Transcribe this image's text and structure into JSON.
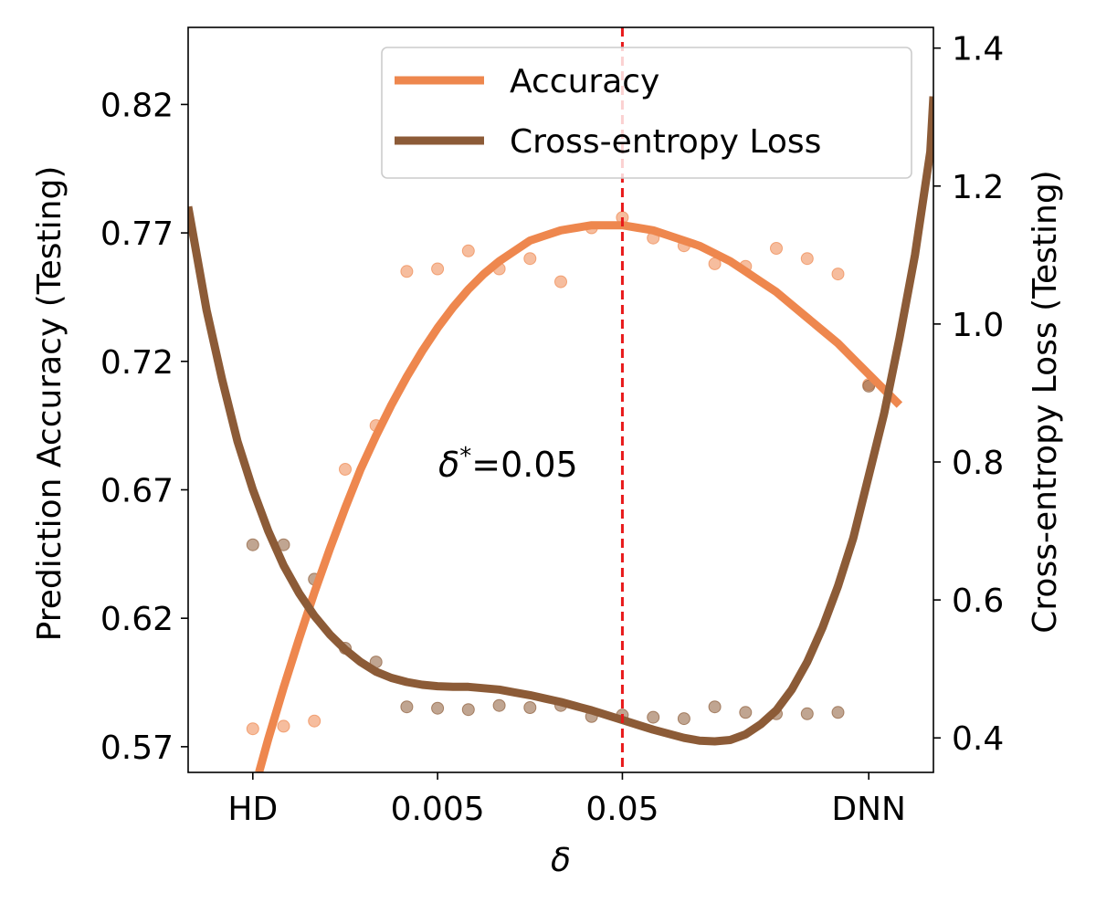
{
  "chart_data": {
    "type": "line",
    "title": "",
    "xlabel": "δ",
    "ylabel_left": "Prediction Accuracy (Testing)",
    "ylabel_right": "Cross-entropy Loss (Testing)",
    "xlim": [
      -2.1,
      22.1
    ],
    "x_ticks": [
      {
        "x": 0,
        "label": "HD"
      },
      {
        "x": 6,
        "label": "0.005"
      },
      {
        "x": 12,
        "label": "0.05"
      },
      {
        "x": 20,
        "label": "DNN"
      }
    ],
    "ylim_left": [
      0.56,
      0.85
    ],
    "yticks_left": [
      "0.57",
      "0.62",
      "0.67",
      "0.72",
      "0.77",
      "0.82"
    ],
    "ylim_right": [
      0.35,
      1.43
    ],
    "yticks_right": [
      "0.4",
      "0.6",
      "0.8",
      "1.0",
      "1.2",
      "1.4"
    ],
    "grid": false,
    "legend_position": "top-right",
    "legend": [
      {
        "label": "Accuracy",
        "color": "#EE874E"
      },
      {
        "label": "Cross-entropy Loss",
        "color": "#8C5B37"
      }
    ],
    "vline": {
      "x": 12,
      "color": "#E8191A",
      "style": "dashed"
    },
    "annotation": {
      "math": "δ",
      "sup": "*",
      "value": "=0.05"
    },
    "series": [
      {
        "name": "Accuracy",
        "axis": "left",
        "color": "#EE874E",
        "scatter_x": [
          0,
          1,
          2,
          3,
          4,
          5,
          6,
          7,
          8,
          9,
          10,
          11,
          12,
          13,
          14,
          15,
          16,
          17,
          18,
          19,
          20
        ],
        "scatter_y": [
          0.577,
          0.578,
          0.58,
          0.678,
          0.695,
          0.755,
          0.756,
          0.763,
          0.756,
          0.76,
          0.751,
          0.772,
          0.776,
          0.768,
          0.765,
          0.758,
          0.757,
          0.764,
          0.76,
          0.754,
          0.711
        ],
        "fit_x": [
          0.2,
          0.5,
          1,
          1.5,
          2,
          2.5,
          3,
          3.5,
          4,
          4.5,
          5,
          5.5,
          6,
          6.5,
          7,
          7.5,
          8,
          8.5,
          9,
          9.5,
          10,
          10.5,
          11,
          11.5,
          12,
          12.5,
          13,
          13.5,
          14,
          14.5,
          15,
          15.5,
          16,
          16.5,
          17,
          17.5,
          18,
          18.5,
          19,
          19.5,
          20,
          20.5,
          21
        ],
        "fit_y": [
          0.56,
          0.573,
          0.593,
          0.612,
          0.63,
          0.647,
          0.663,
          0.678,
          0.691,
          0.703,
          0.714,
          0.724,
          0.733,
          0.741,
          0.748,
          0.754,
          0.759,
          0.763,
          0.767,
          0.769,
          0.771,
          0.772,
          0.773,
          0.773,
          0.773,
          0.772,
          0.771,
          0.769,
          0.767,
          0.765,
          0.762,
          0.759,
          0.755,
          0.751,
          0.747,
          0.742,
          0.737,
          0.732,
          0.727,
          0.721,
          0.715,
          0.709,
          0.703
        ]
      },
      {
        "name": "Cross-entropy Loss",
        "axis": "right",
        "color": "#8C5B37",
        "scatter_x": [
          0,
          1,
          2,
          3,
          4,
          5,
          6,
          7,
          8,
          9,
          10,
          11,
          12,
          13,
          14,
          15,
          16,
          17,
          18,
          19,
          20
        ],
        "scatter_y": [
          0.68,
          0.68,
          0.63,
          0.53,
          0.51,
          0.445,
          0.443,
          0.441,
          0.447,
          0.444,
          0.447,
          0.431,
          0.433,
          0.43,
          0.428,
          0.445,
          0.437,
          0.435,
          0.435,
          0.437,
          0.91
        ],
        "fit_x": [
          -2.1,
          -1.5,
          -1,
          -0.5,
          0,
          0.5,
          1,
          1.5,
          2,
          2.5,
          3,
          3.5,
          4,
          4.5,
          5,
          5.5,
          6,
          6.5,
          7,
          7.5,
          8,
          8.5,
          9,
          9.5,
          10,
          10.5,
          11,
          11.5,
          12,
          12.5,
          13,
          13.5,
          14,
          14.5,
          15,
          15.5,
          16,
          16.5,
          17,
          17.5,
          18,
          18.5,
          19,
          19.5,
          20,
          20.5,
          21,
          21.5,
          22,
          22.1
        ],
        "fit_y": [
          1.17,
          1.02,
          0.92,
          0.83,
          0.76,
          0.7,
          0.65,
          0.61,
          0.577,
          0.55,
          0.528,
          0.51,
          0.496,
          0.487,
          0.481,
          0.477,
          0.475,
          0.474,
          0.474,
          0.472,
          0.47,
          0.466,
          0.462,
          0.457,
          0.452,
          0.446,
          0.44,
          0.433,
          0.426,
          0.419,
          0.412,
          0.406,
          0.4,
          0.396,
          0.395,
          0.397,
          0.405,
          0.42,
          0.44,
          0.47,
          0.51,
          0.56,
          0.62,
          0.69,
          0.78,
          0.87,
          0.98,
          1.1,
          1.25,
          1.33
        ]
      }
    ]
  }
}
